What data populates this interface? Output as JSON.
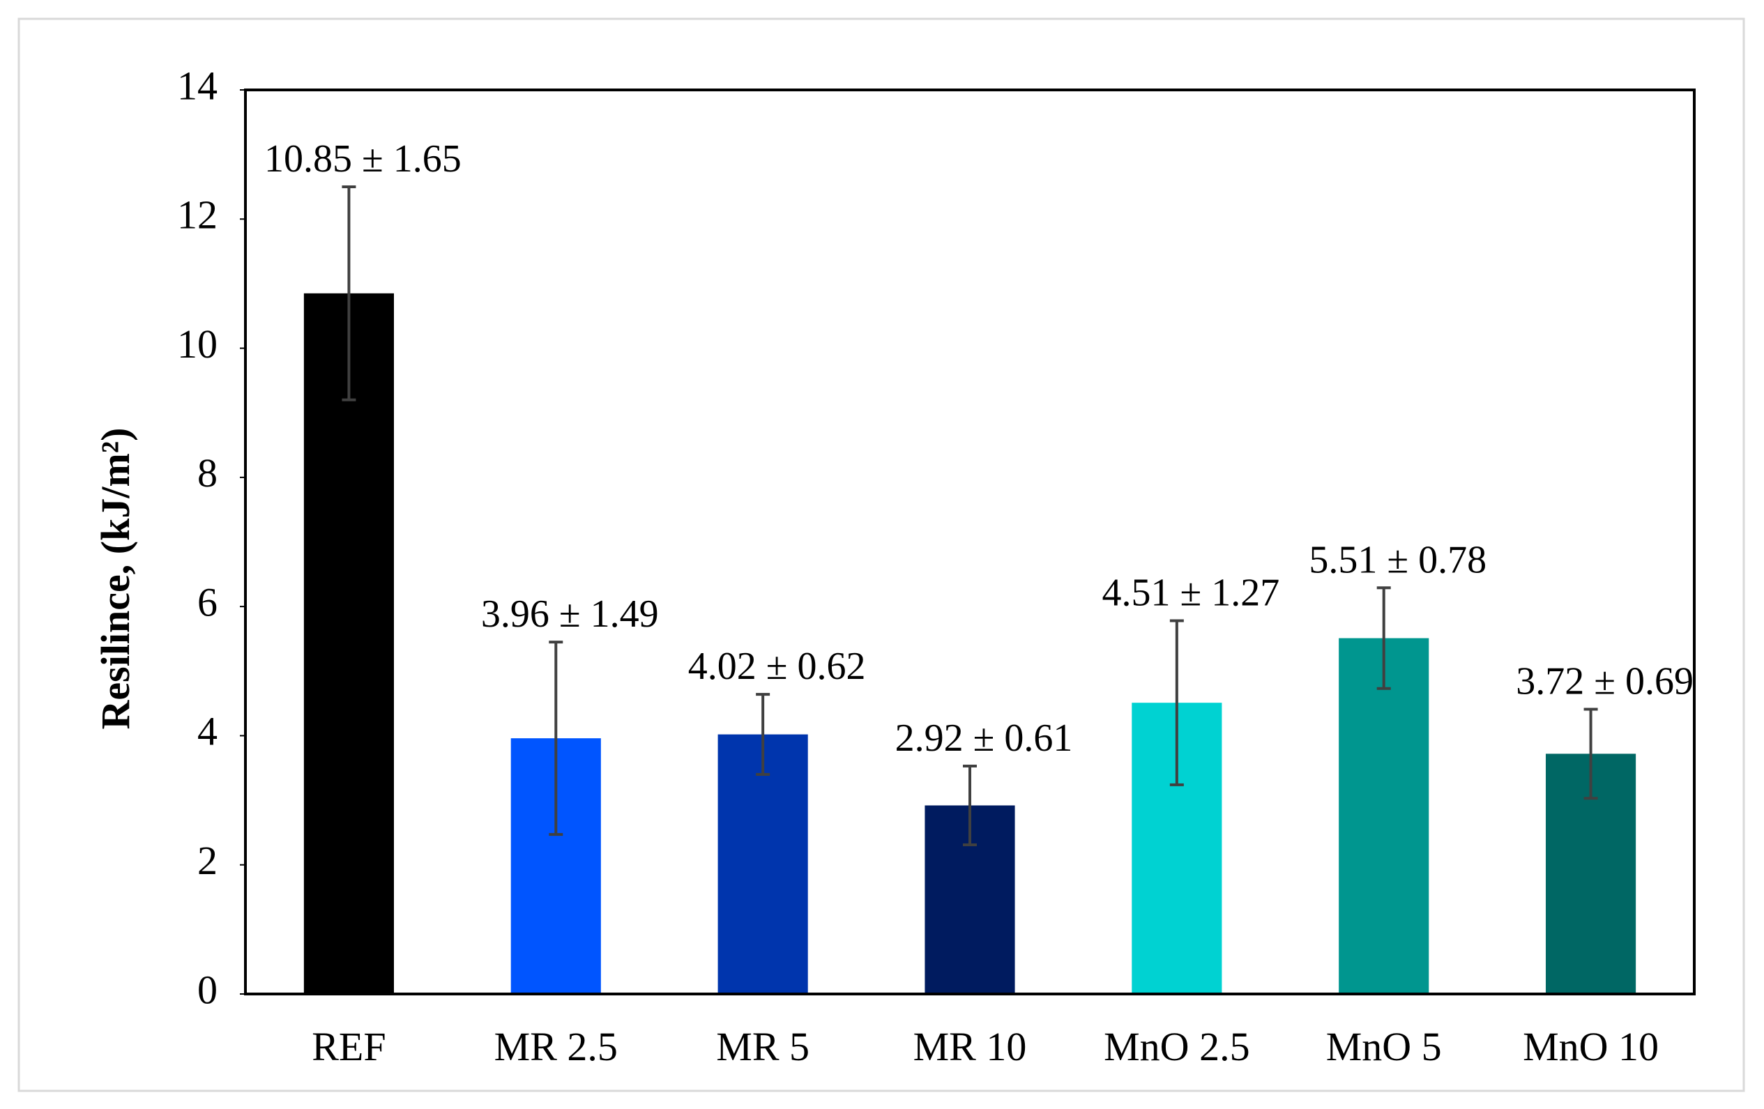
{
  "chart_data": {
    "type": "bar",
    "y_label": "Resilince, (kJ/m²)",
    "categories": [
      "REF",
      "MR 2.5",
      "MR 5",
      "MR 10",
      "MnO 2.5",
      "MnO 5",
      "MnO 10"
    ],
    "values": [
      10.85,
      3.96,
      4.02,
      2.92,
      4.51,
      5.51,
      3.72
    ],
    "errors": [
      1.65,
      1.49,
      0.62,
      0.61,
      1.27,
      0.78,
      0.69
    ],
    "value_labels": [
      "10.85 ± 1.65",
      "3.96 ± 1.49",
      "4.02 ± 0.62",
      "2.92 ± 0.61",
      "4.51 ± 1.27",
      "5.51 ± 0.78",
      "3.72 ± 0.69"
    ],
    "colors": [
      "#000000",
      "#0055ff",
      "#0035ad",
      "#001b5f",
      "#00d2d2",
      "#00968f",
      "#006764"
    ],
    "ylim": [
      0,
      14
    ],
    "yticks": [
      0,
      2,
      4,
      6,
      8,
      10,
      12,
      14
    ],
    "grid": false
  }
}
